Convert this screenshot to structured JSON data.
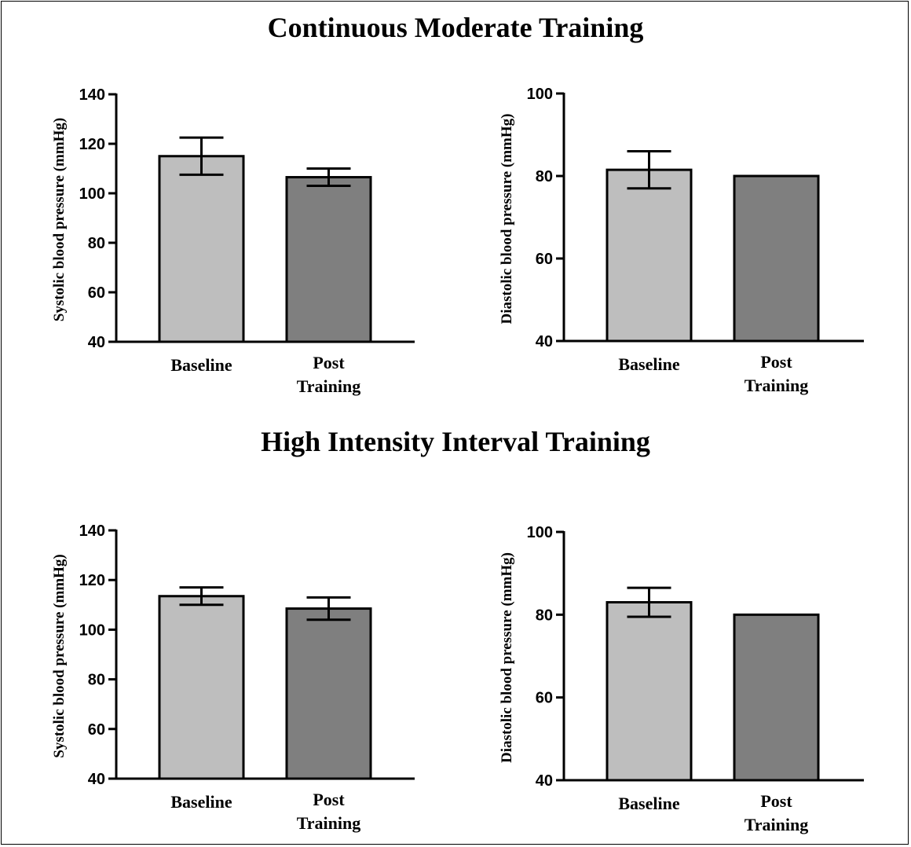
{
  "titles": {
    "top": "Continuous Moderate Training",
    "bottom": "High Intensity Interval Training"
  },
  "colors": {
    "baseline_bar": "#bebebe",
    "post_bar": "#7f7f7f",
    "axis": "#000000"
  },
  "chart_data": [
    {
      "type": "bar",
      "section": "Continuous Moderate Training",
      "ylabel": "Systolic blood pressure (mmHg)",
      "ylim": [
        40,
        140
      ],
      "yticks": [
        40,
        60,
        80,
        100,
        120,
        140
      ],
      "categories": [
        [
          "Baseline"
        ],
        [
          "Post",
          "Training"
        ]
      ],
      "values": [
        115,
        106.5
      ],
      "error": [
        7.5,
        3.5
      ],
      "grid": false
    },
    {
      "type": "bar",
      "section": "Continuous Moderate Training",
      "ylabel": "Diastolic blood pressure (mmHg)",
      "ylim": [
        40,
        100
      ],
      "yticks": [
        40,
        60,
        80,
        100
      ],
      "categories": [
        [
          "Baseline"
        ],
        [
          "Post",
          "Training"
        ]
      ],
      "values": [
        81.5,
        80
      ],
      "error": [
        4.5,
        0
      ],
      "grid": false
    },
    {
      "type": "bar",
      "section": "High Intensity Interval Training",
      "ylabel": "Systolic blood pressure (mmHg)",
      "ylim": [
        40,
        140
      ],
      "yticks": [
        40,
        60,
        80,
        100,
        120,
        140
      ],
      "categories": [
        [
          "Baseline"
        ],
        [
          "Post",
          "Training"
        ]
      ],
      "values": [
        113.5,
        108.5
      ],
      "error": [
        3.5,
        4.5
      ],
      "grid": false
    },
    {
      "type": "bar",
      "section": "High Intensity Interval Training",
      "ylabel": "Diastolic blood pressure (mmHg)",
      "ylim": [
        40,
        100
      ],
      "yticks": [
        40,
        60,
        80,
        100
      ],
      "categories": [
        [
          "Baseline"
        ],
        [
          "Post",
          "Training"
        ]
      ],
      "values": [
        83,
        80
      ],
      "error": [
        3.5,
        0
      ],
      "grid": false
    }
  ]
}
